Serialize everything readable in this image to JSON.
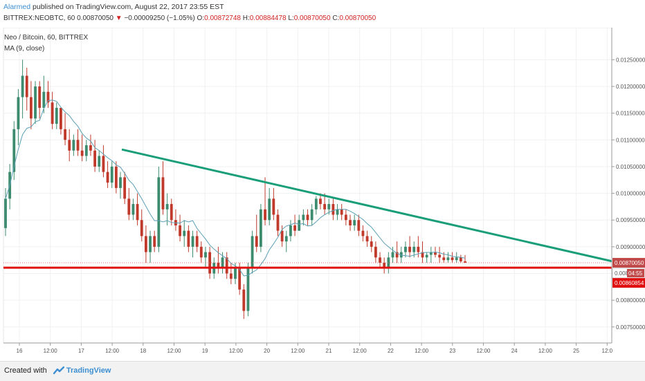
{
  "header": {
    "user": "Alarmed",
    "published": "published on TradingView.com, August 22, 2017 23:55 EST",
    "symbol_line": "BITTREX:NEOBTC, 60",
    "last": "0.00870050",
    "arrow": "▼",
    "change": "−0.00009250 (−1.05%)",
    "o_label": "O:",
    "o_val": "0.00872748",
    "h_label": "H:",
    "h_val": "0.00884478",
    "l_label": "L:",
    "l_val": "0.00870050",
    "c_label": "C:",
    "c_val": "0.00870050"
  },
  "legend": {
    "title": "Neo / Bitcoin, 60, BITTREX",
    "ma": "MA (9, close)"
  },
  "footer": {
    "created_with": "Created with",
    "brand": "TradingView"
  },
  "colors": {
    "up": "#3c8b6e",
    "down": "#c0392b",
    "ma": "#5b9fb5",
    "trendline": "#1a9e7a",
    "support": "#e01010",
    "label_gray": "#c04a4a",
    "label_red": "#e01010"
  },
  "chart_data": {
    "type": "candlestick",
    "title": "Neo / Bitcoin, 60, BITTREX",
    "overlay": "MA (9, close)",
    "ylim": [
      0.0072,
      0.0131
    ],
    "y_ticks": [
      "0.01250000",
      "0.01200000",
      "0.01150000",
      "0.01100000",
      "0.01050000",
      "0.01000000",
      "0.00950000",
      "0.00900000",
      "0.00850000",
      "0.00800000",
      "0.00750000"
    ],
    "x_tick_labels": [
      "16",
      "12:00",
      "17",
      "12:00",
      "18",
      "12:00",
      "19",
      "12:00",
      "20",
      "12:00",
      "21",
      "12:00",
      "22",
      "12:00",
      "23",
      "12:00",
      "24",
      "12:00",
      "25",
      "12:0"
    ],
    "price_labels": {
      "last": "0.00870050",
      "support": "0.00860854",
      "partial": "0.008",
      "countdown": "04:55"
    },
    "trendline": {
      "from": [
        "17 ~15:00",
        0.01082
      ],
      "to": [
        "25 ~12:00",
        0.00873
      ]
    },
    "support_level": 0.00860854,
    "candles": [
      [
        0.00935,
        0.0101,
        0.0092,
        0.0099
      ],
      [
        0.0099,
        0.01055,
        0.0097,
        0.0104
      ],
      [
        0.0104,
        0.01135,
        0.01025,
        0.0112
      ],
      [
        0.0112,
        0.01195,
        0.0109,
        0.0118
      ],
      [
        0.0118,
        0.0125,
        0.0114,
        0.0122
      ],
      [
        0.0122,
        0.01235,
        0.01155,
        0.0118
      ],
      [
        0.0118,
        0.0121,
        0.0112,
        0.0114
      ],
      [
        0.0114,
        0.0121,
        0.0113,
        0.012
      ],
      [
        0.012,
        0.0121,
        0.0114,
        0.0116
      ],
      [
        0.0116,
        0.0122,
        0.0115,
        0.0119
      ],
      [
        0.0119,
        0.0121,
        0.0116,
        0.0117
      ],
      [
        0.0117,
        0.0119,
        0.0112,
        0.0113
      ],
      [
        0.0113,
        0.0117,
        0.0112,
        0.0116
      ],
      [
        0.0116,
        0.0116,
        0.0111,
        0.0112
      ],
      [
        0.0112,
        0.0115,
        0.0109,
        0.011
      ],
      [
        0.011,
        0.0112,
        0.0106,
        0.0108
      ],
      [
        0.0108,
        0.0111,
        0.0107,
        0.011
      ],
      [
        0.011,
        0.0112,
        0.0107,
        0.0108
      ],
      [
        0.0108,
        0.0111,
        0.0106,
        0.0107
      ],
      [
        0.0107,
        0.011,
        0.0106,
        0.0109
      ],
      [
        0.0109,
        0.0111,
        0.0107,
        0.0108
      ],
      [
        0.0108,
        0.011,
        0.0104,
        0.0105
      ],
      [
        0.0105,
        0.0108,
        0.0104,
        0.0107
      ],
      [
        0.0107,
        0.0109,
        0.0103,
        0.0104
      ],
      [
        0.0104,
        0.0106,
        0.0101,
        0.0102
      ],
      [
        0.0102,
        0.0106,
        0.0101,
        0.0105
      ],
      [
        0.0105,
        0.0106,
        0.01,
        0.0101
      ],
      [
        0.0101,
        0.0104,
        0.0099,
        0.0103
      ],
      [
        0.0103,
        0.0104,
        0.0098,
        0.0099
      ],
      [
        0.0099,
        0.0101,
        0.0095,
        0.0096
      ],
      [
        0.0096,
        0.0099,
        0.0095,
        0.0098
      ],
      [
        0.0098,
        0.01,
        0.0094,
        0.0095
      ],
      [
        0.0095,
        0.0097,
        0.0091,
        0.0092
      ],
      [
        0.0092,
        0.0094,
        0.0087,
        0.0089
      ],
      [
        0.0089,
        0.0093,
        0.0087,
        0.0092
      ],
      [
        0.0092,
        0.0093,
        0.0089,
        0.009
      ],
      [
        0.009,
        0.0105,
        0.0089,
        0.0103
      ],
      [
        0.0103,
        0.0106,
        0.0096,
        0.0097
      ],
      [
        0.0097,
        0.01,
        0.0094,
        0.0098
      ],
      [
        0.0098,
        0.0099,
        0.0094,
        0.0095
      ],
      [
        0.0095,
        0.0097,
        0.0093,
        0.0094
      ],
      [
        0.0094,
        0.0096,
        0.0091,
        0.0092
      ],
      [
        0.0092,
        0.0095,
        0.009,
        0.0093
      ],
      [
        0.0093,
        0.0094,
        0.0089,
        0.009
      ],
      [
        0.009,
        0.0093,
        0.0088,
        0.0092
      ],
      [
        0.0092,
        0.0093,
        0.0089,
        0.009
      ],
      [
        0.009,
        0.0091,
        0.0087,
        0.0088
      ],
      [
        0.0088,
        0.009,
        0.0086,
        0.0089
      ],
      [
        0.0089,
        0.009,
        0.0084,
        0.0085
      ],
      [
        0.0085,
        0.0088,
        0.0084,
        0.0087
      ],
      [
        0.0087,
        0.009,
        0.0085,
        0.0086
      ],
      [
        0.0086,
        0.0089,
        0.0085,
        0.0088
      ],
      [
        0.0088,
        0.0089,
        0.0084,
        0.0085
      ],
      [
        0.0085,
        0.0087,
        0.0083,
        0.0084
      ],
      [
        0.0084,
        0.0087,
        0.0083,
        0.0086
      ],
      [
        0.0086,
        0.0087,
        0.0081,
        0.0082
      ],
      [
        0.0082,
        0.0083,
        0.00765,
        0.0078
      ],
      [
        0.0078,
        0.0087,
        0.0077,
        0.0086
      ],
      [
        0.0086,
        0.0093,
        0.0085,
        0.0092
      ],
      [
        0.0092,
        0.0096,
        0.0089,
        0.009
      ],
      [
        0.009,
        0.0098,
        0.0089,
        0.0097
      ],
      [
        0.0097,
        0.0103,
        0.0094,
        0.0095
      ],
      [
        0.0095,
        0.0101,
        0.0094,
        0.0099
      ],
      [
        0.0099,
        0.0101,
        0.0095,
        0.0096
      ],
      [
        0.0096,
        0.0097,
        0.0092,
        0.0093
      ],
      [
        0.0093,
        0.0094,
        0.009,
        0.0091
      ],
      [
        0.0091,
        0.0093,
        0.0089,
        0.0092
      ],
      [
        0.0092,
        0.0095,
        0.0091,
        0.0094
      ],
      [
        0.0094,
        0.0096,
        0.0092,
        0.0093
      ],
      [
        0.0093,
        0.0096,
        0.0093,
        0.0095
      ],
      [
        0.0095,
        0.0097,
        0.0094,
        0.0096
      ],
      [
        0.0096,
        0.0097,
        0.0094,
        0.0095
      ],
      [
        0.0095,
        0.0098,
        0.0094,
        0.0097
      ],
      [
        0.0097,
        0.00995,
        0.0096,
        0.0099
      ],
      [
        0.0099,
        0.01,
        0.0097,
        0.0098
      ],
      [
        0.0098,
        0.01,
        0.0096,
        0.0097
      ],
      [
        0.0097,
        0.0099,
        0.0096,
        0.0098
      ],
      [
        0.0098,
        0.0099,
        0.0095,
        0.0096
      ],
      [
        0.0096,
        0.0098,
        0.0095,
        0.0097
      ],
      [
        0.0097,
        0.0098,
        0.0095,
        0.0096
      ],
      [
        0.0096,
        0.0097,
        0.0094,
        0.0095
      ],
      [
        0.0095,
        0.0096,
        0.0093,
        0.0094
      ],
      [
        0.0094,
        0.0096,
        0.0093,
        0.0095
      ],
      [
        0.0095,
        0.0096,
        0.0092,
        0.0093
      ],
      [
        0.0093,
        0.0094,
        0.0091,
        0.0092
      ],
      [
        0.0092,
        0.0093,
        0.009,
        0.0091
      ],
      [
        0.0091,
        0.0092,
        0.0089,
        0.009
      ],
      [
        0.009,
        0.0091,
        0.0087,
        0.0088
      ],
      [
        0.0088,
        0.0089,
        0.0086,
        0.0087
      ],
      [
        0.0087,
        0.0088,
        0.0085,
        0.0086
      ],
      [
        0.0086,
        0.0089,
        0.0085,
        0.0088
      ],
      [
        0.0088,
        0.009,
        0.0087,
        0.0089
      ],
      [
        0.0089,
        0.0091,
        0.0087,
        0.0088
      ],
      [
        0.0088,
        0.009,
        0.0087,
        0.0089
      ],
      [
        0.0089,
        0.0091,
        0.0088,
        0.009
      ],
      [
        0.009,
        0.0092,
        0.0088,
        0.0089
      ],
      [
        0.0089,
        0.0091,
        0.0088,
        0.009
      ],
      [
        0.009,
        0.0092,
        0.0088,
        0.0089
      ],
      [
        0.0089,
        0.0091,
        0.0087,
        0.0088
      ],
      [
        0.0088,
        0.0089,
        0.0087,
        0.00885
      ],
      [
        0.00885,
        0.009,
        0.0087,
        0.0089
      ],
      [
        0.0089,
        0.009,
        0.0088,
        0.00885
      ],
      [
        0.00885,
        0.009,
        0.0087,
        0.0088
      ],
      [
        0.0088,
        0.0089,
        0.0087,
        0.00875
      ],
      [
        0.00875,
        0.0089,
        0.0087,
        0.0088
      ],
      [
        0.0088,
        0.0089,
        0.0087,
        0.00875
      ],
      [
        0.00875,
        0.0089,
        0.0087,
        0.0088
      ],
      [
        0.0088,
        0.00885,
        0.0087,
        0.00872748
      ],
      [
        0.00872748,
        0.00884478,
        0.0087005,
        0.0087005
      ]
    ]
  }
}
